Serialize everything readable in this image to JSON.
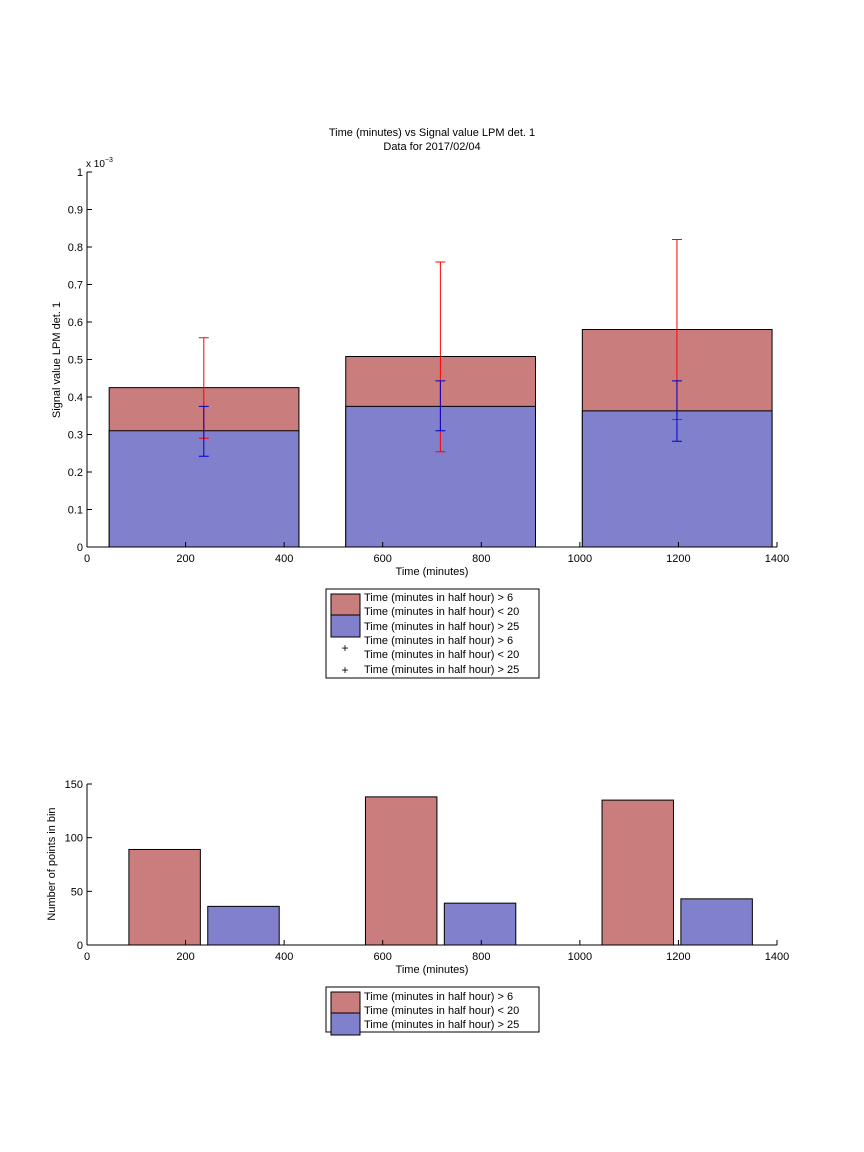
{
  "colors": {
    "red_fill": "#c97d7d",
    "blue_fill": "#8080cc",
    "red_err": "#ff0000",
    "blue_err": "#0000cc"
  },
  "chart_data": [
    {
      "type": "bar",
      "title": "Time (minutes) vs Signal value LPM det. 1",
      "subtitle": "Data for 2017/02/04",
      "xlabel": "Time (minutes)",
      "ylabel": "Signal value LPM det. 1",
      "y_exponent_label": "x 10",
      "y_exponent_sup": "−3",
      "xlim": [
        0,
        1400
      ],
      "ylim": [
        0,
        1
      ],
      "x_ticks": [
        "0",
        "200",
        "400",
        "600",
        "800",
        "1000",
        "1200",
        "1400"
      ],
      "y_ticks": [
        "0",
        "0.1",
        "0.2",
        "0.3",
        "0.4",
        "0.5",
        "0.6",
        "0.7",
        "0.8",
        "0.9",
        "1"
      ],
      "bars": [
        {
          "x_start": 45,
          "x_end": 430,
          "red": 0.425,
          "blue": 0.31
        },
        {
          "x_start": 525,
          "x_end": 910,
          "red": 0.508,
          "blue": 0.375
        },
        {
          "x_start": 1005,
          "x_end": 1390,
          "red": 0.58,
          "blue": 0.363
        }
      ],
      "error_bars": [
        {
          "series": "red",
          "x": 237,
          "low": 0.29,
          "high": 0.558
        },
        {
          "series": "blue",
          "x": 237,
          "low": 0.242,
          "high": 0.375
        },
        {
          "series": "red",
          "x": 717,
          "low": 0.254,
          "high": 0.76
        },
        {
          "series": "blue",
          "x": 717,
          "low": 0.31,
          "high": 0.443
        },
        {
          "series": "red",
          "x": 1197,
          "low": 0.34,
          "high": 0.82
        },
        {
          "series": "blue",
          "x": 1197,
          "low": 0.282,
          "high": 0.443
        }
      ],
      "legend": {
        "placement": "below",
        "entries": [
          {
            "marker": "red-patch",
            "lines": [
              "Time (minutes in half hour) > 6",
              "Time (minutes in half hour) < 20"
            ]
          },
          {
            "marker": "blue-patch",
            "lines": [
              "Time (minutes in half hour) > 25"
            ]
          },
          {
            "marker": "none",
            "lines": [
              "Time (minutes in half hour) > 6"
            ]
          },
          {
            "marker": "red-plus",
            "lines": [
              "Time (minutes in half hour) < 20"
            ]
          },
          {
            "marker": "blue-plus",
            "lines": [
              "Time (minutes in half hour) > 25"
            ]
          }
        ]
      }
    },
    {
      "type": "bar",
      "xlabel": "Time (minutes)",
      "ylabel": "Number of points in bin",
      "xlim": [
        0,
        1400
      ],
      "ylim": [
        0,
        150
      ],
      "x_ticks": [
        "0",
        "200",
        "400",
        "600",
        "800",
        "1000",
        "1200",
        "1400"
      ],
      "y_ticks": [
        "0",
        "50",
        "100",
        "150"
      ],
      "series": [
        {
          "color": "red",
          "bars": [
            {
              "x_start": 85,
              "x_end": 230,
              "value": 89
            },
            {
              "x_start": 565,
              "x_end": 710,
              "value": 138
            },
            {
              "x_start": 1045,
              "x_end": 1190,
              "value": 135
            }
          ]
        },
        {
          "color": "blue",
          "bars": [
            {
              "x_start": 245,
              "x_end": 390,
              "value": 36
            },
            {
              "x_start": 725,
              "x_end": 870,
              "value": 39
            },
            {
              "x_start": 1205,
              "x_end": 1350,
              "value": 43
            }
          ]
        }
      ],
      "legend": {
        "placement": "below",
        "entries": [
          {
            "marker": "red-patch",
            "lines": [
              "Time (minutes in half hour) > 6",
              "Time (minutes in half hour) < 20"
            ]
          },
          {
            "marker": "blue-patch",
            "lines": [
              "Time (minutes in half hour) > 25"
            ]
          }
        ]
      }
    }
  ]
}
